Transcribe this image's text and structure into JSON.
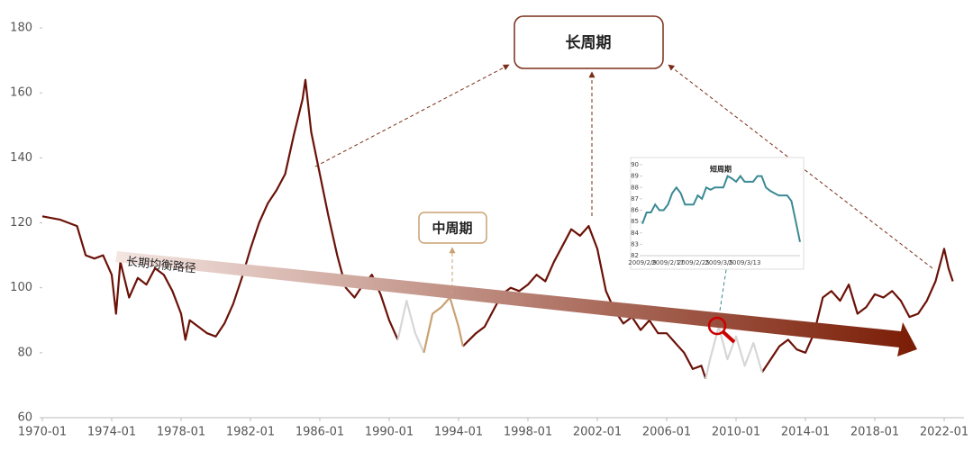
{
  "chart_data": [
    {
      "type": "line",
      "x": [
        "1970-01",
        "1971-01",
        "1972-01",
        "1972-07",
        "1973-01",
        "1973-07",
        "1974-01",
        "1974-04",
        "1974-07",
        "1975-01",
        "1975-07",
        "1976-01",
        "1976-07",
        "1977-01",
        "1977-07",
        "1978-01",
        "1978-04",
        "1978-07",
        "1979-01",
        "1979-07",
        "1980-01",
        "1980-07",
        "1981-01",
        "1981-07",
        "1982-01",
        "1982-07",
        "1983-01",
        "1983-07",
        "1984-01",
        "1984-07",
        "1985-01",
        "1985-03",
        "1985-07",
        "1986-01",
        "1986-07",
        "1987-01",
        "1987-07",
        "1988-01",
        "1988-07",
        "1989-01",
        "1989-07",
        "1990-01",
        "1990-07",
        "1991-01",
        "1991-07",
        "1992-01",
        "1992-07",
        "1993-01",
        "1993-07",
        "1994-01",
        "1994-04",
        "1995-01",
        "1995-07",
        "1996-01",
        "1996-07",
        "1997-01",
        "1997-07",
        "1998-01",
        "1998-07",
        "1999-01",
        "1999-07",
        "2000-01",
        "2000-07",
        "2001-01",
        "2001-07",
        "2002-01",
        "2002-07",
        "2003-01",
        "2003-07",
        "2004-01",
        "2004-07",
        "2005-01",
        "2005-07",
        "2006-01",
        "2006-07",
        "2007-01",
        "2007-07",
        "2008-01",
        "2008-04",
        "2008-07",
        "2009-01",
        "2009-07",
        "2010-01",
        "2010-07",
        "2011-01",
        "2011-07",
        "2012-01",
        "2012-07",
        "2013-01",
        "2013-07",
        "2014-01",
        "2014-07",
        "2015-01",
        "2015-07",
        "2016-01",
        "2016-07",
        "2017-01",
        "2017-07",
        "2018-01",
        "2018-07",
        "2019-01",
        "2019-07",
        "2020-01",
        "2020-07",
        "2021-01",
        "2021-07",
        "2022-01",
        "2022-04",
        "2022-07"
      ],
      "series": [
        {
          "name": "长周期",
          "color": "#6b1208",
          "values": [
            122,
            121,
            119,
            110,
            109,
            110,
            104,
            92,
            108,
            97,
            103,
            101,
            106,
            104,
            99,
            92,
            84,
            90,
            88,
            86,
            85,
            89,
            95,
            103,
            112,
            120,
            126,
            130,
            135,
            147,
            158,
            164,
            148,
            135,
            122,
            110,
            100,
            97,
            101,
            104,
            98,
            90,
            84,
            null,
            null,
            null,
            null,
            null,
            null,
            null,
            82,
            86,
            88,
            93,
            98,
            100,
            99,
            101,
            104,
            102,
            108,
            113,
            118,
            116,
            119,
            112,
            99,
            93,
            89,
            91,
            87,
            90,
            86,
            86,
            83,
            80,
            75,
            76,
            72,
            null,
            null,
            null,
            null,
            null,
            null,
            74,
            78,
            82,
            84,
            81,
            80,
            86,
            97,
            99,
            96,
            101,
            92,
            94,
            98,
            97,
            99,
            96,
            91,
            92,
            96,
            102,
            112,
            106,
            102
          ]
        },
        {
          "name": "短周期",
          "color": "#d6d6d6",
          "values": [
            null,
            null,
            null,
            null,
            null,
            null,
            null,
            null,
            null,
            null,
            null,
            null,
            null,
            null,
            null,
            null,
            null,
            null,
            null,
            null,
            null,
            null,
            null,
            null,
            null,
            null,
            null,
            null,
            null,
            null,
            null,
            null,
            null,
            null,
            null,
            null,
            null,
            null,
            null,
            null,
            null,
            null,
            84,
            96,
            86,
            80,
            null,
            null,
            null,
            null,
            null,
            null,
            null,
            null,
            null,
            null,
            null,
            null,
            null,
            null,
            null,
            null,
            null,
            null,
            null,
            null,
            null,
            null,
            null,
            null,
            null,
            null,
            null,
            null,
            null,
            null,
            null,
            null,
            72,
            78,
            88,
            78,
            85,
            76,
            83,
            74,
            null,
            null,
            null,
            null,
            null,
            null,
            null,
            null,
            null,
            null,
            null,
            null,
            null,
            null,
            null,
            null,
            null,
            null,
            null,
            null,
            null,
            null,
            null
          ]
        },
        {
          "name": "中周期",
          "color": "#c9a271",
          "values": [
            null,
            null,
            null,
            null,
            null,
            null,
            null,
            null,
            null,
            null,
            null,
            null,
            null,
            null,
            null,
            null,
            null,
            null,
            null,
            null,
            null,
            null,
            null,
            null,
            null,
            null,
            null,
            null,
            null,
            null,
            null,
            null,
            null,
            null,
            null,
            null,
            null,
            null,
            null,
            null,
            null,
            null,
            null,
            null,
            null,
            80,
            92,
            94,
            97,
            88,
            82,
            null,
            null,
            null,
            null,
            null,
            null,
            null,
            null,
            null,
            null,
            null,
            null,
            null,
            null,
            null,
            null,
            null,
            null,
            null,
            null,
            null,
            null,
            null,
            null,
            null,
            null,
            null,
            null,
            null,
            null,
            null,
            null,
            null,
            null,
            null,
            null,
            null,
            null,
            null,
            null,
            null,
            null,
            null,
            null,
            null,
            null,
            null,
            null,
            null,
            null,
            null,
            null,
            null,
            null,
            null,
            null,
            null,
            null
          ]
        }
      ],
      "xticks": [
        "1970-01",
        "1974-01",
        "1978-01",
        "1982-01",
        "1986-01",
        "1990-01",
        "1994-01",
        "1998-01",
        "2002-01",
        "2006-01",
        "2010-01",
        "2014-01",
        "2018-01",
        "2022-01"
      ],
      "ylim": [
        60,
        180
      ],
      "yticks": [
        60,
        80,
        100,
        120,
        140,
        160,
        180
      ],
      "annotations": {
        "long": "长周期",
        "mid": "中周期",
        "path": "长期均衡路径"
      }
    },
    {
      "type": "line",
      "title": "短周期",
      "categories": [
        "2009/2/9",
        null,
        null,
        null,
        null,
        null,
        "2009/2/17",
        null,
        null,
        null,
        null,
        null,
        "2009/2/25",
        null,
        null,
        null,
        null,
        null,
        "2009/3/5",
        null,
        null,
        null,
        null,
        null,
        "2009/3/13",
        null,
        null,
        null,
        null,
        null,
        null,
        null,
        null,
        null,
        null,
        null,
        null,
        null
      ],
      "values": [
        84.8,
        85.8,
        85.8,
        86.5,
        86,
        86,
        86.5,
        87.5,
        88,
        87.5,
        86.5,
        86.5,
        86.5,
        87.3,
        87,
        88,
        87.8,
        88,
        88,
        88,
        89,
        88.8,
        88.5,
        89,
        88.5,
        88.5,
        88.5,
        89,
        89,
        88,
        87.7,
        87.5,
        87.3,
        87.3,
        87.3,
        86.8,
        85,
        83.2
      ],
      "color": "#3a8a94",
      "ylim": [
        82,
        90
      ],
      "yticks": [
        82,
        83,
        84,
        85,
        86,
        87,
        88,
        89,
        90
      ]
    }
  ]
}
